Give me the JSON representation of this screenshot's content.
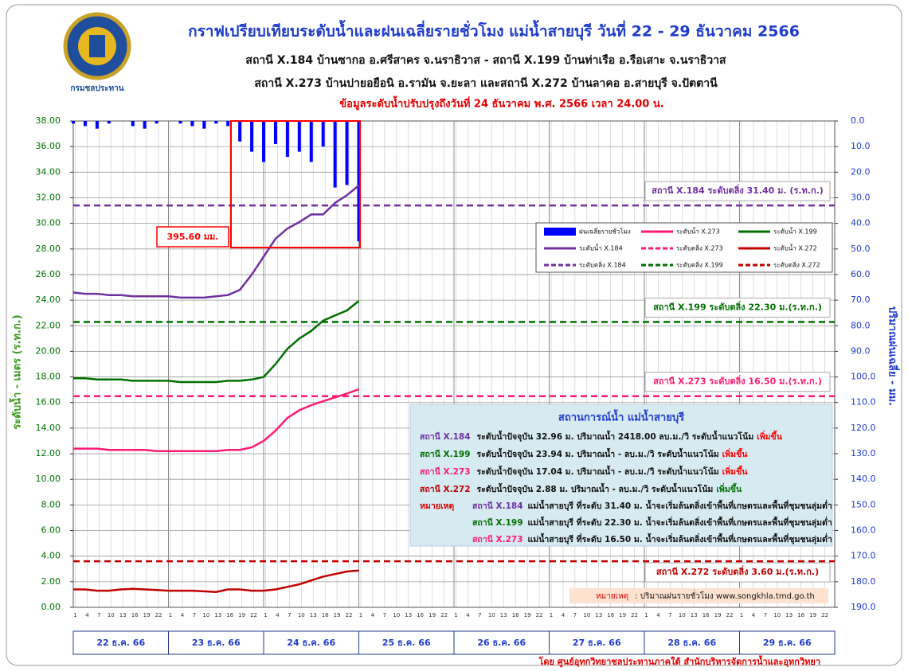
{
  "header": {
    "title": "กราฟเปรียบเทียบระดับน้ำและฝนเฉลี่ยรายชั่วโมง แม่น้ำสายบุรี วันที่ 22 - 29 ธันวาคม 2566",
    "subtitles": [
      "สถานี X.184 บ้านซากอ อ.ศรีสาคร จ.นราธิวาส - สถานี X.199 บ้านท่าเรือ อ.รือเสาะ จ.นราธิวาส",
      "สถานี X.273 บ้านปายอยือนิ อ.รามัน จ.ยะลา และสถานี X.272 บ้านลาคอ อ.สายบุรี จ.ปัตตานี"
    ],
    "update": "ข้อมูลระดับน้ำปรับปรุงถึงวันที่ 24 ธันวาคม พ.ศ. 2566  เวลา 24.00 น."
  },
  "logo_text": "กรมชลประทาน",
  "chart_data": {
    "type": "line",
    "x": [
      0,
      3,
      6,
      9,
      12,
      15,
      18,
      21,
      24,
      27,
      30,
      33,
      36,
      39,
      42,
      45,
      48,
      51,
      54,
      57,
      60,
      63,
      66,
      69,
      72
    ],
    "xlim": [
      0,
      192
    ],
    "hour_ticks": [
      1,
      4,
      7,
      10,
      13,
      16,
      19,
      22
    ],
    "days": [
      "22 ธ.ค. 66",
      "23 ธ.ค. 66",
      "24 ธ.ค. 66",
      "25 ธ.ค. 66",
      "26 ธ.ค. 66",
      "27 ธ.ค. 66",
      "28 ธ.ค. 66",
      "29 ธ.ค. 66"
    ],
    "ylabel": "ระดับน้ำ  -  เมตร (ร.ท.ก.)",
    "y2label": "ปริมาณฝนเฉลี่ย  -  มม.",
    "ylim": [
      0,
      38
    ],
    "yticks": [
      {
        "value": 0,
        "label": "0.00"
      },
      {
        "value": 2,
        "label": "2.00"
      },
      {
        "value": 4,
        "label": "4.00"
      },
      {
        "value": 6,
        "label": "6.00"
      },
      {
        "value": 8,
        "label": "8.00"
      },
      {
        "value": 10,
        "label": "10.00"
      },
      {
        "value": 12,
        "label": "12.00"
      },
      {
        "value": 14,
        "label": "14.00"
      },
      {
        "value": 16,
        "label": "16.00"
      },
      {
        "value": 18,
        "label": "18.00"
      },
      {
        "value": 20,
        "label": "20.00"
      },
      {
        "value": 22,
        "label": "22.00"
      },
      {
        "value": 24,
        "label": "24.00"
      },
      {
        "value": 26,
        "label": "26.00"
      },
      {
        "value": 28,
        "label": "28.00"
      },
      {
        "value": 30,
        "label": "30.00"
      },
      {
        "value": 32,
        "label": "32.00"
      },
      {
        "value": 34,
        "label": "34.00"
      },
      {
        "value": 36,
        "label": "36.00"
      },
      {
        "value": 38,
        "label": "38.00"
      }
    ],
    "y2lim": [
      0,
      190
    ],
    "y2_inverted": true,
    "y2ticks": [
      {
        "value": 0,
        "label": "0.0"
      },
      {
        "value": 10,
        "label": "10.0"
      },
      {
        "value": 20,
        "label": "20.0"
      },
      {
        "value": 30,
        "label": "30.0"
      },
      {
        "value": 40,
        "label": "40.0"
      },
      {
        "value": 50,
        "label": "50.0"
      },
      {
        "value": 60,
        "label": "60.0"
      },
      {
        "value": 70,
        "label": "70.0"
      },
      {
        "value": 80,
        "label": "80.0"
      },
      {
        "value": 90,
        "label": "90.0"
      },
      {
        "value": 100,
        "label": "100.0"
      },
      {
        "value": 110,
        "label": "110.0"
      },
      {
        "value": 120,
        "label": "120.0"
      },
      {
        "value": 130,
        "label": "130.0"
      },
      {
        "value": 140,
        "label": "140.0"
      },
      {
        "value": 150,
        "label": "150.0"
      },
      {
        "value": 160,
        "label": "160.0"
      },
      {
        "value": 170,
        "label": "170.0"
      },
      {
        "value": 180,
        "label": "180.0"
      },
      {
        "value": 190,
        "label": "190.0"
      }
    ],
    "grid": true,
    "series": [
      {
        "name": "ฝนเฉลี่ยรายชั่วโมง",
        "type": "bar",
        "axis": "y2",
        "color": "#0000ff",
        "values": [
          1,
          2,
          3,
          1,
          0,
          2,
          3,
          1,
          0,
          1,
          2,
          3,
          1,
          2,
          8,
          12,
          16,
          9,
          14,
          12,
          16,
          10,
          26,
          25,
          47
        ]
      },
      {
        "name": "ระดับน้ำ X.184",
        "color": "#7030a0",
        "values": [
          24.6,
          24.5,
          24.5,
          24.4,
          24.4,
          24.3,
          24.3,
          24.3,
          24.3,
          24.2,
          24.2,
          24.2,
          24.3,
          24.4,
          24.8,
          26.0,
          27.4,
          28.8,
          29.6,
          30.1,
          30.7,
          30.7,
          31.6,
          32.2,
          32.96
        ]
      },
      {
        "name": "ระดับน้ำ X.199",
        "color": "#007000",
        "values": [
          17.9,
          17.9,
          17.8,
          17.8,
          17.8,
          17.7,
          17.7,
          17.7,
          17.7,
          17.6,
          17.6,
          17.6,
          17.6,
          17.7,
          17.7,
          17.8,
          18.0,
          19.0,
          20.2,
          21.0,
          21.6,
          22.4,
          22.8,
          23.2,
          23.94
        ]
      },
      {
        "name": "ระดับน้ำ X.273",
        "color": "#ff1a75",
        "values": [
          12.4,
          12.4,
          12.4,
          12.3,
          12.3,
          12.3,
          12.3,
          12.2,
          12.2,
          12.2,
          12.2,
          12.2,
          12.2,
          12.3,
          12.3,
          12.5,
          13.0,
          13.8,
          14.8,
          15.4,
          15.8,
          16.1,
          16.4,
          16.7,
          17.04
        ]
      },
      {
        "name": "ระดับน้ำ X.272",
        "color": "#c00000",
        "values": [
          1.4,
          1.4,
          1.3,
          1.3,
          1.4,
          1.45,
          1.4,
          1.35,
          1.3,
          1.3,
          1.3,
          1.25,
          1.2,
          1.4,
          1.4,
          1.3,
          1.3,
          1.4,
          1.6,
          1.8,
          2.1,
          2.4,
          2.6,
          2.8,
          2.88
        ]
      }
    ],
    "thresholds": [
      {
        "name": "ระดับตลิ่ง X.184",
        "value": 31.4,
        "color": "#7030a0",
        "label": "สถานี X.184 ระดับตลิ่ง 31.40 ม. (ร.ท.ก.)"
      },
      {
        "name": "ระดับตลิ่ง X.199",
        "value": 22.3,
        "color": "#007000",
        "label": "สถานี X.199 ระดับตลิ่ง 22.30 ม.(ร.ท.ก.)"
      },
      {
        "name": "ระดับตลิ่ง X.273",
        "value": 16.5,
        "color": "#ff1a75",
        "label": "สถานี X.273 ระดับตลิ่ง 16.50 ม.(ร.ท.ก.)"
      },
      {
        "name": "ระดับตลิ่ง X.272",
        "value": 3.6,
        "color": "#c00000",
        "label": "สถานี X.272 ระดับตลิ่ง 3.60 ม.(ร.ท.ก.)"
      }
    ],
    "rain_total": "395.60 มม."
  },
  "info_box": {
    "title": "สถานการณ์น้ำ แม่น้ำสายบุรี",
    "rows": [
      {
        "station": "สถานี X.184",
        "station_color": "#7030a0",
        "text": "ระดับน้ำปัจจุบัน  32.96 ม. ปริมาณน้ำ 2418.00 ลบ.ม./วิ  ระดับน้ำแนวโน้ม",
        "trend": "เพิ่มขึ้น",
        "trend_color": "#ff0000"
      },
      {
        "station": "สถานี X.199",
        "station_color": "#007000",
        "text": "ระดับน้ำปัจจุบัน  23.94 ม. ปริมาณน้ำ - ลบ.ม./วิ  ระดับน้ำแนวโน้ม",
        "trend": "เพิ่มขึ้น",
        "trend_color": "#ff0000"
      },
      {
        "station": "สถานี X.273",
        "station_color": "#ff1a75",
        "text": "ระดับน้ำปัจจุบัน  17.04 ม. ปริมาณน้ำ - ลบ.ม./วิ  ระดับน้ำแนวโน้ม",
        "trend": "เพิ่มขึ้น",
        "trend_color": "#ff0000"
      },
      {
        "station": "สถานี X.272",
        "station_color": "#c00000",
        "text": "ระดับน้ำปัจจุบัน  2.88 ม. ปริมาณน้ำ - ลบ.ม./วิ  ระดับน้ำแนวโน้ม",
        "trend": "เพิ่มขึ้น",
        "trend_color": "#007000"
      }
    ],
    "remark_label": "หมายเหตุ",
    "remarks": [
      {
        "station": "สถานี X.184",
        "station_color": "#7030a0",
        "text": "แม่น้ำสายบุรี  ที่ระดับ 31.40 ม. น้ำจะเริ่มล้นตลิ่งเข้าพื้นที่เกษตรและพื้นที่ชุมชนลุ่มต่ำ"
      },
      {
        "station": "สถานี X.199",
        "station_color": "#007000",
        "text": "แม่น้ำสายบุรี  ที่ระดับ 22.30 ม. น้ำจะเริ่มล้นตลิ่งเข้าพื้นที่เกษตรและพื้นที่ชุมชนลุ่มต่ำ"
      },
      {
        "station": "สถานี X.273",
        "station_color": "#ff1a75",
        "text": "แม่น้ำสายบุรี  ที่ระดับ 16.50 ม. น้ำจะเริ่มล้นตลิ่งเข้าพื้นที่เกษตรและพื้นที่ชุมชนลุ่มต่ำ"
      }
    ]
  },
  "rain_note": {
    "label": "หมายเหตุ",
    "text": ": ปริมาณฝนรายชั่วโมง www.songkhla.tmd.go.th"
  },
  "footer": "โดย ศูนย์อุทกวิทยาชลประทานภาคใต้ สำนักบริหารจัดการน้ำและอุทกวิทยา"
}
